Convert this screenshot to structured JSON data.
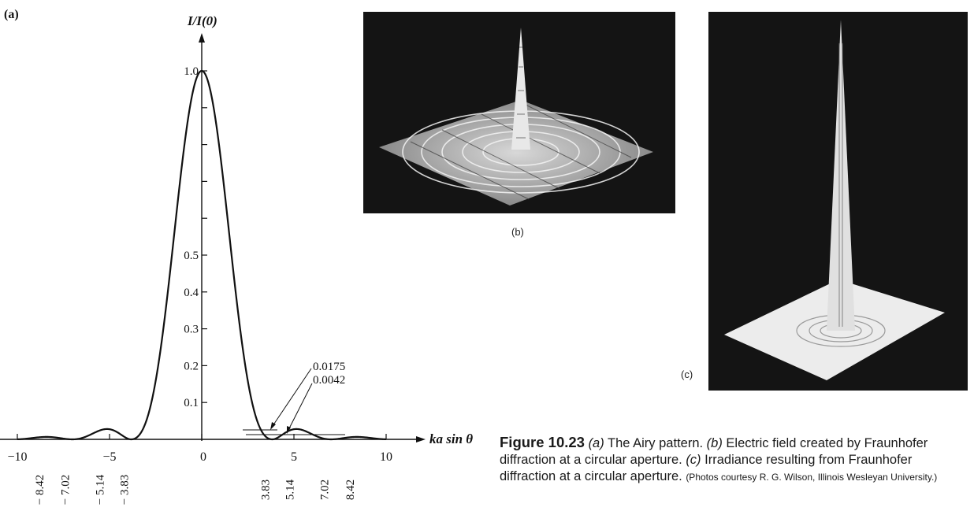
{
  "chart_data": {
    "type": "line",
    "panel_label": "(a)",
    "ylabel": "I/I(0)",
    "xlabel": "ka sin θ",
    "xlim": [
      -10,
      10
    ],
    "ylim": [
      0,
      1.0
    ],
    "x_tick_labels": [
      "−10",
      "−5",
      "0",
      "5",
      "10"
    ],
    "x_ticks": [
      -10,
      -5,
      0,
      5,
      10
    ],
    "y_tick_labels": [
      "0.1",
      "0.2",
      "0.3",
      "0.4",
      "0.5",
      "1.0"
    ],
    "y_ticks": [
      0.1,
      0.2,
      0.3,
      0.4,
      0.5,
      1.0
    ],
    "minima_labels": [
      "− 8.42",
      "− 7.02",
      "− 5.14",
      "− 3.83",
      "3.83",
      "5.14",
      "7.02",
      "8.42"
    ],
    "minima_x": [
      -8.42,
      -7.02,
      -5.14,
      -3.83,
      3.83,
      5.14,
      7.02,
      8.42
    ],
    "annotations": [
      "0.0175",
      "0.0042"
    ],
    "series": [
      {
        "function": "[2 J1(x) / x]^2",
        "x": [
          -10,
          -9,
          -8.42,
          -7.5,
          -7.02,
          -6.5,
          -5.5,
          -5.14,
          -4.5,
          -4,
          -3.83,
          -3.5,
          -3,
          -2.5,
          -2,
          -1.5,
          -1,
          -0.5,
          0,
          0.5,
          1,
          1.5,
          2,
          2.5,
          3,
          3.5,
          3.83,
          4,
          4.5,
          5.14,
          5.5,
          6.5,
          7.02,
          7.5,
          8.42,
          9,
          10
        ],
        "y": [
          0.0018,
          0.0022,
          0.0016,
          0.0001,
          0,
          0.0018,
          0.0042,
          0.0035,
          0.0152,
          0.0036,
          0,
          0.0049,
          0.0512,
          0.1557,
          0.3326,
          0.557,
          0.775,
          0.9385,
          1.0,
          0.9385,
          0.775,
          0.557,
          0.3326,
          0.1557,
          0.0512,
          0.0049,
          0,
          0.0036,
          0.0152,
          0.0035,
          0.0042,
          0.0018,
          0,
          0.0001,
          0.0016,
          0.0022,
          0.0018
        ]
      }
    ]
  },
  "figures": {
    "b_label": "(b)",
    "c_label": "(c)"
  },
  "caption": {
    "figure_number": "Figure 10.23",
    "part_a_marker": "(a)",
    "part_a_text": " The Airy pattern. ",
    "part_b_marker": "(b)",
    "part_b_text": " Electric field created by Fraunhofer diffraction at a circular aperture. ",
    "part_c_marker": "(c)",
    "part_c_text": " Irradiance resulting from Fraunhofer diffraction at a circular aperture. ",
    "credit": "(Photos courtesy R. G. Wilson, Illinois Wesleyan University.)"
  }
}
